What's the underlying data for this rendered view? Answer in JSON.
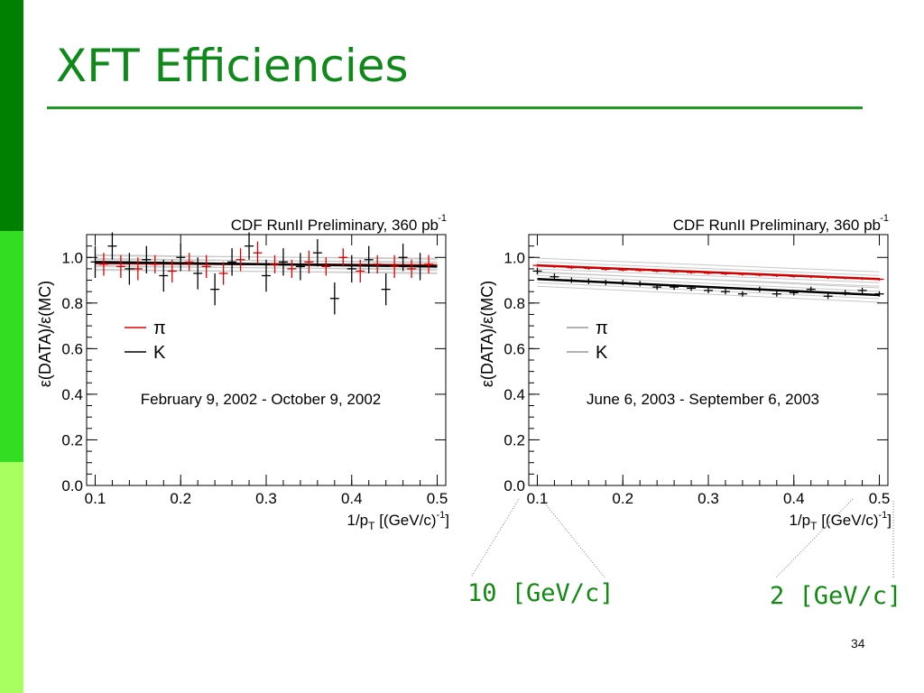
{
  "slide": {
    "title": "XFT Efficiencies",
    "page_number": "34",
    "callouts": [
      "10 [GeV/c]",
      "2 [GeV/c]"
    ],
    "colors": {
      "bar_dark": "#008000",
      "bar_mid": "#33dd22",
      "bar_light": "#a8ff60",
      "title": "#0f8a1a"
    }
  },
  "chart_data": [
    {
      "type": "scatter",
      "title": "CDF RunII Preliminary, 360 pb",
      "title_sup": "-1",
      "date_range": "February 9, 2002 - October 9, 2002",
      "ylabel": "ε(DATA)/ε(MC)",
      "xlabel": "1/p",
      "xlabel_sub": "T",
      "xlabel_unit": " [(GeV/c)",
      "xlabel_sup": "-1",
      "xlabel_close": "]",
      "xlim": [
        0.09,
        0.51
      ],
      "ylim": [
        0.0,
        1.1
      ],
      "xticks": [
        "0.1",
        "0.2",
        "0.3",
        "0.4",
        "0.5"
      ],
      "yticks": [
        "0.0",
        "0.2",
        "0.4",
        "0.6",
        "0.8",
        "1.0"
      ],
      "legend": [
        {
          "name": "π",
          "color": "#dd0000"
        },
        {
          "name": "K",
          "color": "#000000"
        }
      ],
      "fits": [
        {
          "series": "π",
          "x": [
            0.1,
            0.5
          ],
          "y": [
            0.975,
            0.965
          ]
        },
        {
          "series": "K",
          "x": [
            0.1,
            0.5
          ],
          "y": [
            0.98,
            0.96
          ]
        }
      ],
      "series": [
        {
          "name": "π",
          "color": "#dd0000",
          "x": [
            0.11,
            0.13,
            0.15,
            0.17,
            0.19,
            0.21,
            0.23,
            0.25,
            0.27,
            0.29,
            0.31,
            0.33,
            0.35,
            0.37,
            0.39,
            0.41,
            0.43,
            0.45,
            0.47,
            0.49
          ],
          "y": [
            0.97,
            0.96,
            0.95,
            0.97,
            0.94,
            0.98,
            0.96,
            0.93,
            0.99,
            1.02,
            0.97,
            0.95,
            0.98,
            0.96,
            1.0,
            0.94,
            0.97,
            0.96,
            0.95,
            0.97
          ],
          "err": [
            0.05,
            0.05,
            0.05,
            0.04,
            0.05,
            0.04,
            0.05,
            0.05,
            0.05,
            0.05,
            0.04,
            0.04,
            0.05,
            0.04,
            0.04,
            0.05,
            0.04,
            0.05,
            0.04,
            0.04
          ]
        },
        {
          "name": "K",
          "color": "#000000",
          "x": [
            0.1,
            0.12,
            0.14,
            0.16,
            0.18,
            0.2,
            0.22,
            0.24,
            0.26,
            0.28,
            0.3,
            0.32,
            0.34,
            0.36,
            0.38,
            0.4,
            0.42,
            0.44,
            0.46,
            0.48
          ],
          "y": [
            0.98,
            1.05,
            0.95,
            0.99,
            0.92,
            1.0,
            0.93,
            0.86,
            0.98,
            1.05,
            0.92,
            0.98,
            0.96,
            1.02,
            0.82,
            0.95,
            0.99,
            0.86,
            1.0,
            0.96
          ],
          "err": [
            0.07,
            0.06,
            0.07,
            0.06,
            0.07,
            0.06,
            0.07,
            0.07,
            0.06,
            0.06,
            0.07,
            0.06,
            0.06,
            0.06,
            0.07,
            0.06,
            0.06,
            0.07,
            0.06,
            0.06
          ]
        }
      ]
    },
    {
      "type": "scatter",
      "title": "CDF RunII Preliminary, 360 pb",
      "title_sup": "-1",
      "date_range": "June 6, 2003 - September 6, 2003",
      "ylabel": "ε(DATA)/ε(MC)",
      "xlabel": "1/p",
      "xlabel_sub": "T",
      "xlabel_unit": " [(GeV/c)",
      "xlabel_sup": "-1",
      "xlabel_close": "]",
      "xlim": [
        0.09,
        0.51
      ],
      "ylim": [
        0.0,
        1.1
      ],
      "xticks": [
        "0.1",
        "0.2",
        "0.3",
        "0.4",
        "0.5"
      ],
      "yticks": [
        "0.0",
        "0.2",
        "0.4",
        "0.6",
        "0.8",
        "1.0"
      ],
      "legend": [
        {
          "name": "π",
          "color": "#999999"
        },
        {
          "name": "K",
          "color": "#999999"
        }
      ],
      "fits": [
        {
          "series": "π",
          "x": [
            0.1,
            0.5
          ],
          "y": [
            0.965,
            0.905
          ]
        },
        {
          "series": "K",
          "x": [
            0.1,
            0.5
          ],
          "y": [
            0.905,
            0.835
          ]
        }
      ],
      "series": [
        {
          "name": "π",
          "color": "#dd0000",
          "x": [
            0.1,
            0.12,
            0.14,
            0.16,
            0.18,
            0.2,
            0.22,
            0.24,
            0.26,
            0.28,
            0.3,
            0.32,
            0.34,
            0.36,
            0.38,
            0.4,
            0.42,
            0.44,
            0.46,
            0.48,
            0.5
          ],
          "y": [
            0.965,
            0.96,
            0.955,
            0.952,
            0.948,
            0.945,
            0.943,
            0.94,
            0.937,
            0.934,
            0.931,
            0.928,
            0.926,
            0.923,
            0.92,
            0.917,
            0.915,
            0.912,
            0.91,
            0.907,
            0.904
          ],
          "err": [
            0.006,
            0.006,
            0.006,
            0.006,
            0.006,
            0.006,
            0.006,
            0.006,
            0.006,
            0.006,
            0.006,
            0.006,
            0.006,
            0.006,
            0.006,
            0.006,
            0.006,
            0.006,
            0.006,
            0.006,
            0.006
          ]
        },
        {
          "name": "K",
          "color": "#000000",
          "x": [
            0.1,
            0.12,
            0.14,
            0.16,
            0.18,
            0.2,
            0.22,
            0.24,
            0.26,
            0.28,
            0.3,
            0.32,
            0.34,
            0.36,
            0.38,
            0.4,
            0.42,
            0.44,
            0.46,
            0.48,
            0.5
          ],
          "y": [
            0.94,
            0.915,
            0.9,
            0.895,
            0.89,
            0.89,
            0.885,
            0.87,
            0.87,
            0.865,
            0.855,
            0.85,
            0.84,
            0.86,
            0.84,
            0.845,
            0.86,
            0.83,
            0.845,
            0.855,
            0.84
          ],
          "err": [
            0.015,
            0.015,
            0.012,
            0.012,
            0.012,
            0.012,
            0.012,
            0.012,
            0.012,
            0.012,
            0.012,
            0.012,
            0.012,
            0.012,
            0.012,
            0.012,
            0.012,
            0.012,
            0.012,
            0.012,
            0.012
          ]
        }
      ]
    }
  ]
}
